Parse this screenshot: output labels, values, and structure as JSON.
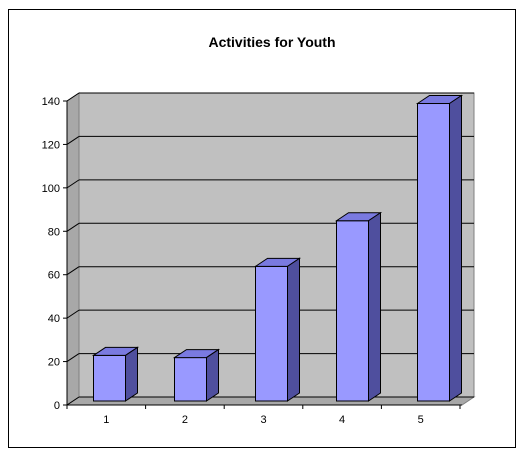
{
  "chart_data": {
    "type": "bar",
    "title": "Activities for Youth",
    "categories": [
      "1",
      "2",
      "3",
      "4",
      "5"
    ],
    "values": [
      21,
      20,
      62,
      83,
      137
    ],
    "ylim": [
      0,
      140
    ],
    "yticks": [
      0,
      20,
      40,
      60,
      80,
      100,
      120,
      140
    ],
    "xlabel": "",
    "ylabel": "",
    "grid": true,
    "legend": "none",
    "style": "3d-column",
    "colors": {
      "bar_front": "#9999FF",
      "bar_top": "#7A7AE0",
      "bar_side": "#4F4F9E",
      "plot_background": "#C0C0C0",
      "gridline": "#000000",
      "axis": "#000000",
      "text": "#000000"
    }
  }
}
